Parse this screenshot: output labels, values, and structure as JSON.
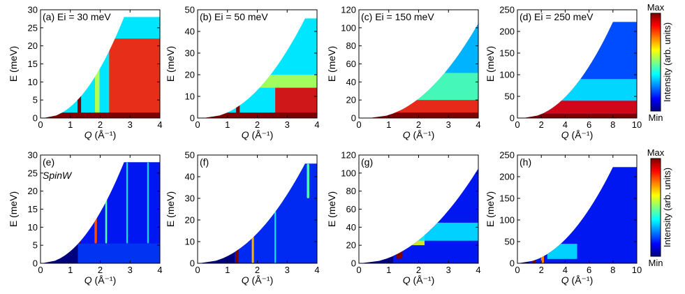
{
  "figure": {
    "description_labels": true
  },
  "colorbar": {
    "max_label": "Max",
    "min_label": "Min",
    "title": "Intensity (arb. units)",
    "colors": [
      "#00007f",
      "#0000ff",
      "#0080ff",
      "#00ffff",
      "#80ff80",
      "#ffff00",
      "#ff8000",
      "#ff0000",
      "#7f0000"
    ]
  },
  "chart_data": [
    {
      "type": "heatmap",
      "panel": "(a)",
      "label": "(a) Ei = 30 meV",
      "italic_label": "",
      "xlabel_italic": "Q",
      "xlabel_unit": " (Å⁻¹)",
      "ylabel": "E (meV)",
      "xlim": [
        0,
        4
      ],
      "ylim": [
        0,
        30
      ],
      "xticks": [
        0,
        1,
        2,
        3,
        4
      ],
      "yticks": [
        0,
        5,
        10,
        15,
        20,
        25,
        30
      ],
      "kinematic_limit": {
        "qmax_at_emax": 2.8,
        "emax": 28
      },
      "q_start": 0.1,
      "elastic_cut": 1.5,
      "background_level": 0.35,
      "features": [
        {
          "kind": "vertical_band",
          "q": 1.3,
          "width": 0.12,
          "e_from": 1,
          "e_to": 18,
          "level": 1.0
        },
        {
          "kind": "region",
          "q_from": 2.3,
          "q_to": 4.0,
          "e_from": 1,
          "e_to": 22,
          "level": 0.85
        },
        {
          "kind": "vertical_band",
          "q": 1.9,
          "width": 0.15,
          "e_from": 1,
          "e_to": 25,
          "level": 0.55
        },
        {
          "kind": "elastic_line",
          "level": 1.0
        }
      ]
    },
    {
      "type": "heatmap",
      "panel": "(b)",
      "label": "(b) Ei = 50 meV",
      "italic_label": "",
      "xlabel_italic": "Q",
      "xlabel_unit": " (Å⁻¹)",
      "ylabel": "E (meV)",
      "xlim": [
        0,
        4
      ],
      "ylim": [
        0,
        50
      ],
      "xticks": [
        0,
        1,
        2,
        3,
        4
      ],
      "yticks": [
        0,
        10,
        20,
        30,
        40,
        50
      ],
      "kinematic_limit": {
        "qmax_at_emax": 3.6,
        "emax": 46
      },
      "q_start": 0.2,
      "elastic_cut": 2.5,
      "background_level": 0.35,
      "features": [
        {
          "kind": "vertical_band",
          "q": 1.35,
          "width": 0.12,
          "e_from": 2,
          "e_to": 24,
          "level": 1.0
        },
        {
          "kind": "region",
          "q_from": 2.6,
          "q_to": 4.0,
          "e_from": 2,
          "e_to": 14,
          "level": 0.9
        },
        {
          "kind": "region",
          "q_from": 1.5,
          "q_to": 4.0,
          "e_from": 14,
          "e_to": 20,
          "level": 0.55
        },
        {
          "kind": "elastic_line",
          "level": 1.0
        }
      ]
    },
    {
      "type": "heatmap",
      "panel": "(c)",
      "label": "(c) Ei = 150 meV",
      "italic_label": "",
      "xlabel_italic": "Q",
      "xlabel_unit": " (Å⁻¹)",
      "ylabel": "E (meV)",
      "xlim": [
        0,
        4
      ],
      "ylim": [
        0,
        120
      ],
      "xticks": [
        0,
        1,
        2,
        3,
        4
      ],
      "yticks": [
        0,
        20,
        40,
        60,
        80,
        100,
        120
      ],
      "kinematic_limit": {
        "qmax_at_emax": 4.0,
        "emax": 105
      },
      "q_start": 0.35,
      "elastic_cut": 6,
      "background_level": 0.3,
      "features": [
        {
          "kind": "vertical_band",
          "q": 1.3,
          "width": 0.15,
          "e_from": 5,
          "e_to": 45,
          "level": 1.0
        },
        {
          "kind": "region",
          "q_from": 1.1,
          "q_to": 4.0,
          "e_from": 5,
          "e_to": 20,
          "level": 0.85
        },
        {
          "kind": "region",
          "q_from": 1.5,
          "q_to": 4.0,
          "e_from": 20,
          "e_to": 50,
          "level": 0.45
        },
        {
          "kind": "elastic_line",
          "level": 1.0
        }
      ]
    },
    {
      "type": "heatmap",
      "panel": "(d)",
      "label": "(d) Ei = 250 meV",
      "italic_label": "",
      "xlabel_italic": "Q",
      "xlabel_unit": " (Å⁻¹)",
      "ylabel": "E (meV)",
      "xlim": [
        0,
        10
      ],
      "ylim": [
        0,
        250
      ],
      "xticks": [
        0,
        2,
        4,
        6,
        8,
        10
      ],
      "yticks": [
        0,
        50,
        100,
        150,
        200,
        250
      ],
      "kinematic_limit": {
        "qmax_at_emax": 8.0,
        "emax": 222
      },
      "q_start": 0.5,
      "elastic_cut": 10,
      "background_level": 0.2,
      "features": [
        {
          "kind": "vertical_band",
          "q": 1.4,
          "width": 0.35,
          "e_from": 10,
          "e_to": 60,
          "level": 1.0
        },
        {
          "kind": "region",
          "q_from": 1.0,
          "q_to": 10.0,
          "e_from": 10,
          "e_to": 40,
          "level": 0.9
        },
        {
          "kind": "region",
          "q_from": 2.0,
          "q_to": 10.0,
          "e_from": 40,
          "e_to": 90,
          "level": 0.35
        },
        {
          "kind": "elastic_line",
          "level": 1.0
        }
      ]
    },
    {
      "type": "heatmap",
      "panel": "(e)",
      "label": "(e)",
      "italic_label": "SpinW",
      "xlabel_italic": "Q",
      "xlabel_unit": " (Å⁻¹)",
      "ylabel": "E (meV)",
      "xlim": [
        0,
        4
      ],
      "ylim": [
        0,
        30
      ],
      "xticks": [
        0,
        1,
        2,
        3,
        4
      ],
      "yticks": [
        0,
        5,
        10,
        15,
        20,
        25,
        30
      ],
      "kinematic_limit": {
        "qmax_at_emax": 2.8,
        "emax": 28
      },
      "q_start": 0.05,
      "elastic_cut": 0,
      "background_level": 0.0,
      "features": [
        {
          "kind": "region",
          "q_from": 1.25,
          "q_to": 4.0,
          "e_from": 0,
          "e_to": 5.5,
          "level": 0.18
        },
        {
          "kind": "region",
          "q_from": 1.25,
          "q_to": 4.0,
          "e_from": 5.5,
          "e_to": 30,
          "level": 0.15
        },
        {
          "kind": "vertical_band",
          "q": 1.3,
          "width": 0.1,
          "e_from": 5.5,
          "e_to": 18,
          "level": 1.0
        },
        {
          "kind": "vertical_band",
          "q": 1.85,
          "width": 0.08,
          "e_from": 5.5,
          "e_to": 25,
          "level": 0.8
        },
        {
          "kind": "vertical_band",
          "q": 2.2,
          "width": 0.06,
          "e_from": 5.5,
          "e_to": 28,
          "level": 0.45
        },
        {
          "kind": "vertical_band",
          "q": 2.9,
          "width": 0.05,
          "e_from": 5.5,
          "e_to": 28,
          "level": 0.35
        },
        {
          "kind": "vertical_band",
          "q": 3.6,
          "width": 0.05,
          "e_from": 5.5,
          "e_to": 28,
          "level": 0.35
        }
      ]
    },
    {
      "type": "heatmap",
      "panel": "(f)",
      "label": "(f)",
      "italic_label": "",
      "xlabel_italic": "Q",
      "xlabel_unit": " (Å⁻¹)",
      "ylabel": "E (meV)",
      "xlim": [
        0,
        4
      ],
      "ylim": [
        0,
        50
      ],
      "xticks": [
        0,
        1,
        2,
        3,
        4
      ],
      "yticks": [
        0,
        10,
        20,
        30,
        40,
        50
      ],
      "kinematic_limit": {
        "qmax_at_emax": 3.6,
        "emax": 46
      },
      "q_start": 0.05,
      "elastic_cut": 0,
      "background_level": 0.0,
      "features": [
        {
          "kind": "region",
          "q_from": 1.25,
          "q_to": 4.0,
          "e_from": 0,
          "e_to": 50,
          "level": 0.17
        },
        {
          "kind": "vertical_band",
          "q": 1.32,
          "width": 0.1,
          "e_from": 0,
          "e_to": 25,
          "level": 1.0
        },
        {
          "kind": "vertical_band",
          "q": 1.85,
          "width": 0.07,
          "e_from": 0,
          "e_to": 30,
          "level": 0.7
        },
        {
          "kind": "vertical_band",
          "q": 2.6,
          "width": 0.05,
          "e_from": 0,
          "e_to": 40,
          "level": 0.35
        },
        {
          "kind": "vertical_band",
          "q": 3.7,
          "width": 0.08,
          "e_from": 30,
          "e_to": 46,
          "level": 0.45
        }
      ]
    },
    {
      "type": "heatmap",
      "panel": "(g)",
      "label": "(g)",
      "italic_label": "",
      "xlabel_italic": "Q",
      "xlabel_unit": " (Å⁻¹)",
      "ylabel": "E (meV)",
      "xlim": [
        0,
        4
      ],
      "ylim": [
        0,
        120
      ],
      "xticks": [
        0,
        1,
        2,
        3,
        4
      ],
      "yticks": [
        0,
        20,
        40,
        60,
        80,
        100,
        120
      ],
      "kinematic_limit": {
        "qmax_at_emax": 4.0,
        "emax": 105
      },
      "q_start": 0.05,
      "elastic_cut": 0,
      "background_level": 0.0,
      "features": [
        {
          "kind": "region",
          "q_from": 1.15,
          "q_to": 4.0,
          "e_from": 0,
          "e_to": 120,
          "level": 0.15
        },
        {
          "kind": "vertical_band",
          "q": 1.35,
          "width": 0.22,
          "e_from": 5,
          "e_to": 48,
          "level": 1.0
        },
        {
          "kind": "region",
          "q_from": 1.5,
          "q_to": 2.2,
          "e_from": 20,
          "e_to": 45,
          "level": 0.6
        },
        {
          "kind": "region",
          "q_from": 2.0,
          "q_to": 4.0,
          "e_from": 25,
          "e_to": 45,
          "level": 0.35
        }
      ]
    },
    {
      "type": "heatmap",
      "panel": "(h)",
      "label": "(h)",
      "italic_label": "",
      "xlabel_italic": "Q",
      "xlabel_unit": " (Å⁻¹)",
      "ylabel": "E (meV)",
      "xlim": [
        0,
        10
      ],
      "ylim": [
        0,
        250
      ],
      "xticks": [
        0,
        2,
        4,
        6,
        8,
        10
      ],
      "yticks": [
        0,
        50,
        100,
        150,
        200,
        250
      ],
      "kinematic_limit": {
        "qmax_at_emax": 8.0,
        "emax": 222
      },
      "q_start": 0.05,
      "elastic_cut": 0,
      "background_level": 0.0,
      "features": [
        {
          "kind": "region",
          "q_from": 1.0,
          "q_to": 10.0,
          "e_from": 0,
          "e_to": 250,
          "level": 0.15
        },
        {
          "kind": "vertical_band",
          "q": 1.4,
          "width": 0.3,
          "e_from": 0,
          "e_to": 55,
          "level": 1.0
        },
        {
          "kind": "vertical_band",
          "q": 2.1,
          "width": 0.25,
          "e_from": 0,
          "e_to": 45,
          "level": 0.75
        },
        {
          "kind": "region",
          "q_from": 2.5,
          "q_to": 5.0,
          "e_from": 10,
          "e_to": 45,
          "level": 0.35
        }
      ]
    }
  ]
}
